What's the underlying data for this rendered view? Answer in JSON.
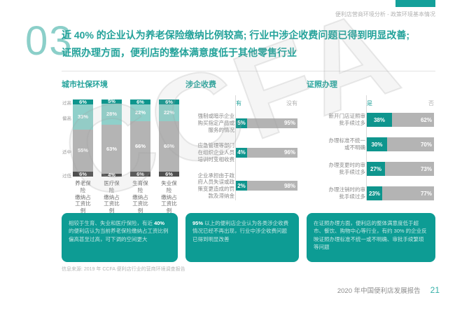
{
  "page": {
    "header_tag": "便利店营商环境分析 - 政策环境基本情况",
    "section_number": "03",
    "title_line1": "近 40% 的企业认为养老保险缴纳比例较高; 行业中涉企收费问题已得到明显改善;",
    "title_line2": "证照办理方面，便利店的整体满意度低于其他零售行业",
    "source_note": "信息来源: 2019 年 CCFA 便利店行业的营商环境调查报告",
    "footer_text": "2020 年中国便利店发展报告",
    "page_number": "21",
    "watermark": "CCFA"
  },
  "colors": {
    "accent_teal": "#14a09a",
    "dark_teal": "#0e958d",
    "light_teal": "#8fd0ca",
    "mid_gray": "#b4b4b4",
    "dark_gray": "#4f4f4f",
    "note_bg": "#0d9c94"
  },
  "chart_data": [
    {
      "type": "bar",
      "stacked": true,
      "title": "城市社保环境",
      "unit": "%",
      "ylim": [
        0,
        100
      ],
      "categories": [
        "养老保险\n缴纳占\n工资比例",
        "医疗保险\n缴纳占\n工资比例",
        "生育保险\n缴纳占\n工资比例",
        "失业保险\n缴纳占\n工资比例"
      ],
      "series": [
        {
          "name": "过高",
          "values": [
            6,
            5,
            6,
            6
          ],
          "color": "#0e958d"
        },
        {
          "name": "偏高",
          "values": [
            33,
            28,
            22,
            22
          ],
          "color": "#8fd0ca"
        },
        {
          "name": "适中",
          "values": [
            55,
            63,
            66,
            66
          ],
          "color": "#b4b4b4"
        },
        {
          "name": "过低",
          "values": [
            6,
            4,
            6,
            6
          ],
          "color": "#4f4f4f"
        }
      ]
    },
    {
      "type": "bar",
      "orientation": "horizontal",
      "stacked": true,
      "title": "涉企收费",
      "unit": "%",
      "legend": [
        "有",
        "没有"
      ],
      "categories": [
        "强制或暗示企业\n购买指定产品或\n服务的情况",
        "应急管理等部门\n在组织企业人员\n培训时变相收费",
        "企业承担由于政\n府人员失误或政\n策变更造成的罚\n款及滞纳金"
      ],
      "series": [
        {
          "name": "有",
          "values": [
            5,
            4,
            2
          ],
          "color": "#0e958d"
        },
        {
          "name": "没有",
          "values": [
            95,
            96,
            98
          ],
          "color": "#b4b4b4"
        }
      ]
    },
    {
      "type": "bar",
      "orientation": "horizontal",
      "stacked": true,
      "title": "证照办理",
      "unit": "%",
      "legend": [
        "是",
        "否"
      ],
      "categories": [
        "新开门店证照审\n批手续过多",
        "办理标准不统一\n或不明确",
        "办理变更时的审\n批手续过多",
        "办理注销时的审\n批手续过多"
      ],
      "series": [
        {
          "name": "是",
          "values": [
            38,
            30,
            27,
            23
          ],
          "color": "#0e958d"
        },
        {
          "name": "否",
          "values": [
            62,
            70,
            73,
            77
          ],
          "color": "#b4b4b4"
        }
      ]
    }
  ],
  "notes": [
    {
      "prefix": "相较于生育、失业和医疗保险，有近 ",
      "bold": "40%",
      "suffix": " 的便利店认为当前养老保险缴纳占工资比例偏高甚至过高，可下调的空间更大"
    },
    {
      "prefix": "",
      "bold": "95%",
      "suffix": " 以上的便利店企业认为各类涉企收费情况已经不再出现，行业中涉企收费问题已得到明显改善"
    },
    {
      "prefix": "在证照办理方面，便利店的整体满意度低于超市、餐饮、购物中心等行业，有约 30% 的企业反映证照办理标准不统一或不明确、审批手续繁琐等问题",
      "bold": "",
      "suffix": ""
    }
  ]
}
